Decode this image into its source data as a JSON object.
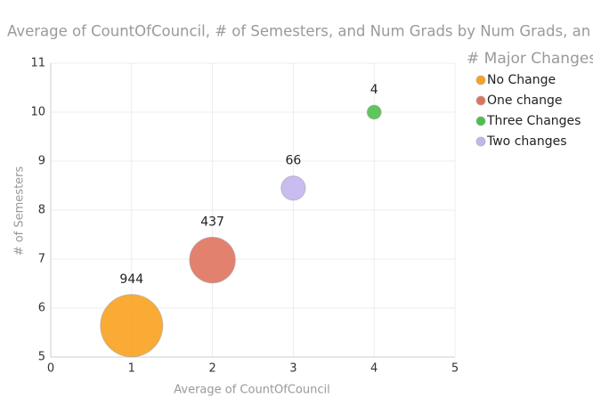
{
  "chart_data": {
    "type": "bubble",
    "title": "Average of CountOfCouncil, # of Semesters, and Num Grads by Num Grads, an",
    "x_label": "Average of CountOfCouncil",
    "y_label": "# of Semesters",
    "legend_title": "# Major Changes",
    "legend": "top-right",
    "grid": true,
    "xlim": [
      0,
      5
    ],
    "xticks": [
      0,
      1,
      2,
      3,
      4,
      5
    ],
    "ylim": [
      5,
      11
    ],
    "yticks": [
      5,
      6,
      7,
      8,
      9,
      10,
      11
    ],
    "series": [
      {
        "name": "No Change",
        "color": "#f9a21f",
        "x": [
          1
        ],
        "values": [
          5.64
        ],
        "sizes": [
          944
        ]
      },
      {
        "name": "One change",
        "color": "#e0735f",
        "x": [
          2
        ],
        "values": [
          6.98
        ],
        "sizes": [
          437
        ]
      },
      {
        "name": "Three Changes",
        "color": "#4dc04a",
        "x": [
          4
        ],
        "values": [
          10
        ],
        "sizes": [
          4
        ]
      },
      {
        "name": "Two changes",
        "color": "#c3b5ef",
        "x": [
          3
        ],
        "values": [
          8.45
        ],
        "sizes": [
          66
        ]
      }
    ]
  }
}
